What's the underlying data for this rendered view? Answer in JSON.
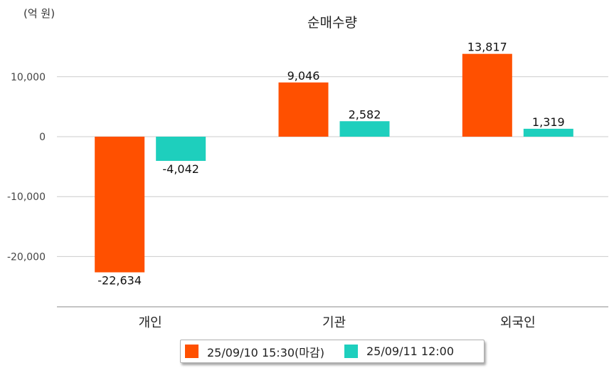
{
  "chart_data": {
    "type": "bar",
    "title": "순매수량",
    "unit_label": "(억 원)",
    "categories": [
      "개인",
      "기관",
      "외국인"
    ],
    "series": [
      {
        "name": "25/09/10 15:30(마감)",
        "color": "#ff5000",
        "values": [
          -22634,
          9046,
          13817
        ],
        "labels": [
          "-22,634",
          "9,046",
          "13,817"
        ]
      },
      {
        "name": "25/09/11 12:00",
        "color": "#1ecfbd",
        "values": [
          -4042,
          2582,
          1319
        ],
        "labels": [
          "-4,042",
          "2,582",
          "1,319"
        ]
      }
    ],
    "yticks": [
      10000,
      0,
      -10000,
      -20000
    ],
    "ytick_labels": [
      "10,000",
      "0",
      "-10,000",
      "-20,000"
    ],
    "ylim": [
      -28000,
      17500
    ],
    "grid": true,
    "legend_position": "bottom"
  }
}
